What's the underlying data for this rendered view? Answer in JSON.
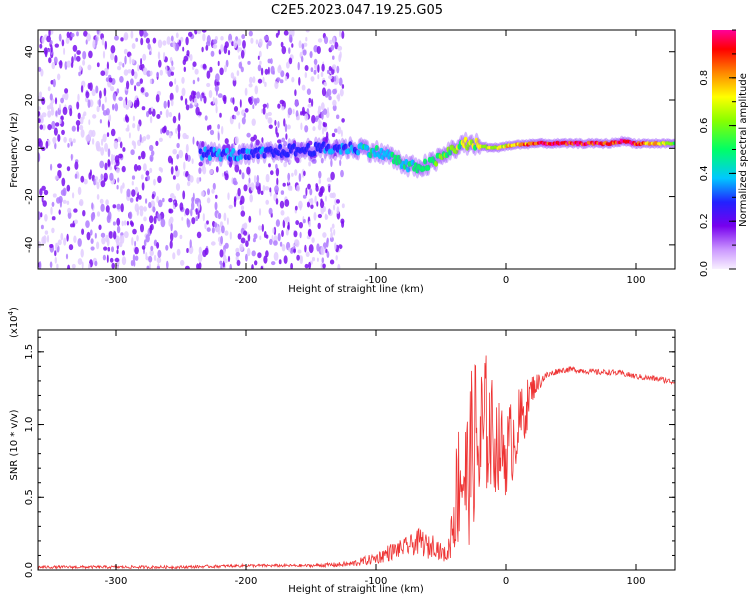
{
  "title": "C2E5.2023.047.19.25.G05",
  "colors": {
    "snr_line": "#ee3333",
    "axes": "#000000",
    "colormap": [
      "#f8f0ff",
      "#cc99ff",
      "#7700ee",
      "#2222ff",
      "#00c8ff",
      "#00ff66",
      "#88ff00",
      "#ffff00",
      "#ff8800",
      "#ff0000",
      "#ff0099"
    ]
  },
  "chart_data": [
    {
      "type": "heatmap",
      "xlabel": "Height of straight line (km)",
      "ylabel": "Frequency (Hz)",
      "xlim": [
        -360,
        130
      ],
      "ylim": [
        -50,
        49
      ],
      "xticks": [
        -300,
        -200,
        -100,
        0,
        100
      ],
      "xtick_labels": [
        "-300",
        "-200",
        "-100",
        "0",
        "100"
      ],
      "yticks": [
        -40,
        -20,
        0,
        20,
        40
      ],
      "ytick_labels": [
        "-40",
        "-20",
        "0",
        "20",
        "40"
      ],
      "ridge": {
        "x": [
          -235,
          -200,
          -170,
          -130,
          -110,
          -90,
          -75,
          -60,
          -50,
          -40,
          -30,
          -20,
          -10,
          0,
          20,
          50,
          80,
          90,
          100,
          130
        ],
        "frequency": [
          -2,
          -3,
          -1,
          0,
          0,
          -3,
          -8,
          -7,
          -4,
          0,
          2,
          1,
          0,
          1,
          2,
          2,
          2,
          3,
          2,
          2
        ],
        "amplitude": [
          0.35,
          0.35,
          0.3,
          0.35,
          0.4,
          0.45,
          0.45,
          0.5,
          0.55,
          0.6,
          0.62,
          0.65,
          0.65,
          0.7,
          0.85,
          0.9,
          0.88,
          0.92,
          0.85,
          0.55
        ]
      },
      "noise_region": {
        "x": [
          -360,
          -125
        ],
        "amplitude": 0.12
      }
    },
    {
      "type": "colorbar",
      "label": "Normalized spectral amplitude",
      "range": [
        0.0,
        1.0
      ],
      "ticks": [
        0.0,
        0.2,
        0.4,
        0.6,
        0.8
      ],
      "tick_labels": [
        "0.0",
        "0.2",
        "0.4",
        "0.6",
        "0.8"
      ]
    },
    {
      "type": "line",
      "xlabel": "Height of straight line (km)",
      "ylabel": "SNR (10 * v/v)",
      "scale_label": "(x10",
      "scale_exponent": "4",
      "scale_close": ")",
      "xlim": [
        -360,
        130
      ],
      "ylim": [
        0,
        1.65
      ],
      "xticks": [
        -300,
        -200,
        -100,
        0,
        100
      ],
      "xtick_labels": [
        "-300",
        "-200",
        "-100",
        "0",
        "100"
      ],
      "yticks": [
        0.0,
        0.5,
        1.0,
        1.5
      ],
      "ytick_labels": [
        "0.0",
        "0.5",
        "1.0",
        "1.5"
      ],
      "series": [
        {
          "name": "SNR",
          "x": [
            -360,
            -300,
            -250,
            -200,
            -150,
            -120,
            -100,
            -90,
            -80,
            -70,
            -65,
            -60,
            -55,
            -50,
            -45,
            -40,
            -35,
            -30,
            -25,
            -20,
            -15,
            -10,
            -5,
            0,
            5,
            10,
            15,
            20,
            30,
            40,
            50,
            60,
            70,
            80,
            90,
            100,
            110,
            120,
            130
          ],
          "values": [
            0.02,
            0.02,
            0.02,
            0.03,
            0.03,
            0.04,
            0.08,
            0.12,
            0.15,
            0.18,
            0.2,
            0.15,
            0.18,
            0.12,
            0.1,
            0.4,
            0.7,
            0.6,
            0.9,
            0.8,
            1.0,
            0.9,
            0.85,
            0.8,
            0.9,
            1.0,
            1.1,
            1.25,
            1.33,
            1.37,
            1.38,
            1.37,
            1.36,
            1.36,
            1.35,
            1.33,
            1.32,
            1.31,
            1.29
          ],
          "spread": [
            0.01,
            0.01,
            0.01,
            0.01,
            0.01,
            0.02,
            0.04,
            0.06,
            0.06,
            0.08,
            0.1,
            0.08,
            0.08,
            0.06,
            0.05,
            0.3,
            0.55,
            0.5,
            0.6,
            0.7,
            0.5,
            0.4,
            0.3,
            0.3,
            0.3,
            0.25,
            0.2,
            0.1,
            0.03,
            0.02,
            0.02,
            0.02,
            0.02,
            0.02,
            0.02,
            0.02,
            0.02,
            0.02,
            0.02
          ]
        }
      ]
    }
  ]
}
